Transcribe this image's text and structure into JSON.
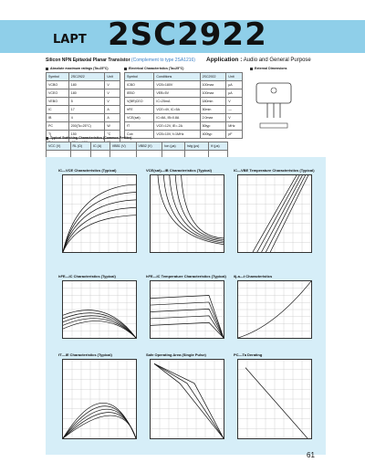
{
  "header": {
    "series": "LAPT",
    "part": "2SC2922"
  },
  "subtitle": {
    "text": "Silicon NPN Epitaxial Planar Transistor",
    "complement": "(Complement to type 2SA1216)"
  },
  "application": {
    "label": "Application :",
    "value": "Audio and General Purpose"
  },
  "sections": {
    "ratings": "Absolute maximum ratings (Ta=25°C)",
    "electrical": "Electrical Characteristics (Ta=25°C)",
    "dimensions": "External Dimensions",
    "typical": "Typical Switching Characteristics (Common Emitter)"
  },
  "ratings": {
    "head": [
      "Symbol",
      "2SC2922",
      "Unit"
    ],
    "rows": [
      [
        "VCBO",
        "180",
        "V"
      ],
      [
        "VCEO",
        "180",
        "V"
      ],
      [
        "VEBO",
        "5",
        "V"
      ],
      [
        "IC",
        "17",
        "A"
      ],
      [
        "IB",
        "4",
        "A"
      ],
      [
        "PC",
        "200(Tc=25°C)",
        "W"
      ],
      [
        "Tj",
        "150",
        "°C"
      ],
      [
        "Tstg",
        "-55 to +150",
        "°C"
      ]
    ]
  },
  "electrical": {
    "head": [
      "Symbol",
      "Conditions",
      "2SC2922",
      "Unit"
    ],
    "rows": [
      [
        "ICBO",
        "VCB=180V",
        "100max",
        "μA"
      ],
      [
        "IEBO",
        "VEB=5V",
        "100max",
        "μA"
      ],
      [
        "V(BR)CEO",
        "IC=25mA",
        "180min",
        "V"
      ],
      [
        "hFE",
        "VCE=4V, IC=5A",
        "50min",
        "—"
      ],
      [
        "VCE(sat)",
        "IC=8A, IB=0.8A",
        "2.0max",
        "V"
      ],
      [
        "fT",
        "VCE=12V, IE=-2A",
        "50typ",
        "MHz"
      ],
      [
        "Cob",
        "VCB=10V, f=1MHz",
        "400typ",
        "pF"
      ]
    ]
  },
  "switching": {
    "head": [
      "VCC (V)",
      "RL (Ω)",
      "IC (A)",
      "VBB1 (V)",
      "VBB2 (V)",
      "ton (μs)",
      "tstg (μs)",
      "tf (μs)"
    ],
    "row": [
      "",
      "",
      "",
      "",
      "",
      "",
      "",
      ""
    ]
  },
  "charts": [
    {
      "title": "IC—VCE Characteristics (Typical)"
    },
    {
      "title": "VCE(sat)—IB Characteristics (Typical)"
    },
    {
      "title": "IC—VBE Temperature Characteristics (Typical)"
    },
    {
      "title": "hFE—IC Characteristics (Typical)"
    },
    {
      "title": "hFE—IC Temperature Characteristics (Typical)"
    },
    {
      "title": "θj-a—t Characteristics"
    },
    {
      "title": "fT—IE Characteristics (Typical)"
    },
    {
      "title": "Safe Operating Area (Single Pulse)"
    },
    {
      "title": "PC—Ta Derating"
    }
  ],
  "page_number": "61"
}
